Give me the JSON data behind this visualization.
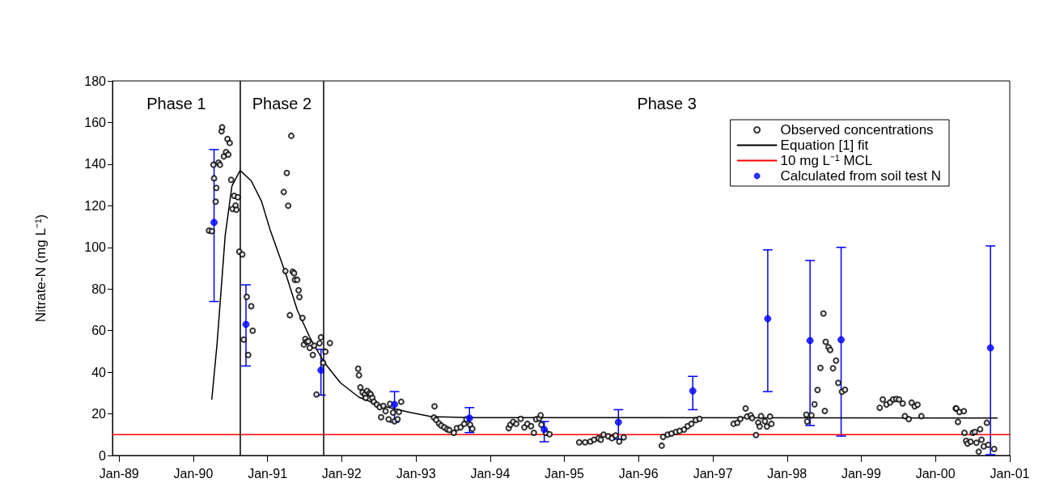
{
  "chart_data": {
    "type": "scatter",
    "ylabel": "Nitrate-N (mg L⁻¹)",
    "xlim": [
      "1988-11-29",
      "2001-01-01"
    ],
    "xticks": [
      {
        "value": "1989-01-01",
        "label": "Jan-89"
      },
      {
        "value": "1990-01-01",
        "label": "Jan-90"
      },
      {
        "value": "1991-01-01",
        "label": "Jan-91"
      },
      {
        "value": "1992-01-01",
        "label": "Jan-92"
      },
      {
        "value": "1993-01-01",
        "label": "Jan-93"
      },
      {
        "value": "1994-01-01",
        "label": "Jan-94"
      },
      {
        "value": "1995-01-01",
        "label": "Jan-95"
      },
      {
        "value": "1996-01-01",
        "label": "Jan-96"
      },
      {
        "value": "1997-01-01",
        "label": "Jan-97"
      },
      {
        "value": "1998-01-01",
        "label": "Jan-98"
      },
      {
        "value": "1999-01-01",
        "label": "Jan-99"
      },
      {
        "value": "2000-01-01",
        "label": "Jan-00"
      },
      {
        "value": "2001-01-01",
        "label": "Jan-01"
      }
    ],
    "ylim": [
      0,
      180
    ],
    "yticks": [
      0,
      20,
      40,
      60,
      80,
      100,
      120,
      140,
      160,
      180
    ],
    "grid": false,
    "legend": "top right",
    "series": [
      {
        "name": "Observed concentrations",
        "marker": "circle",
        "color": "#000000",
        "x": [
          "1990-03-19",
          "1990-04-02",
          "1990-04-10",
          "1990-04-13",
          "1990-04-21",
          "1990-04-24",
          "1990-05-05",
          "1990-05-12",
          "1990-05-20",
          "1990-05-23",
          "1990-05-31",
          "1990-06-11",
          "1990-06-18",
          "1990-06-22",
          "1990-06-29",
          "1990-07-06",
          "1990-07-13",
          "1990-07-21",
          "1990-07-28",
          "1990-08-01",
          "1990-08-08",
          "1990-08-15",
          "1990-08-30",
          "1990-09-06",
          "1990-09-21",
          "1990-09-28",
          "1990-10-13",
          "1990-10-20",
          "1991-03-22",
          "1991-03-30",
          "1991-04-06",
          "1991-04-13",
          "1991-04-21",
          "1991-04-28",
          "1991-05-05",
          "1991-05-12",
          "1991-05-16",
          "1991-05-27",
          "1991-06-03",
          "1991-06-07",
          "1991-06-22",
          "1991-06-29",
          "1991-07-06",
          "1991-07-13",
          "1991-07-21",
          "1991-07-28",
          "1991-08-12",
          "1991-08-19",
          "1991-08-30",
          "1991-09-14",
          "1991-09-21",
          "1991-10-02",
          "1991-10-13",
          "1991-11-04",
          "1992-03-22",
          "1992-03-26",
          "1992-04-02",
          "1992-04-13",
          "1992-04-24",
          "1992-04-28",
          "1992-05-05",
          "1992-05-16",
          "1992-05-23",
          "1992-05-31",
          "1992-06-07",
          "1992-06-22",
          "1992-07-06",
          "1992-07-13",
          "1992-07-24",
          "1992-08-04",
          "1992-08-19",
          "1992-08-26",
          "1992-09-10",
          "1992-09-17",
          "1992-10-02",
          "1992-10-09",
          "1992-10-20",
          "1993-03-30",
          "1993-04-02",
          "1993-04-10",
          "1993-04-24",
          "1993-05-05",
          "1993-05-20",
          "1993-06-03",
          "1993-06-14",
          "1993-07-06",
          "1993-07-21",
          "1993-08-08",
          "1993-08-26",
          "1993-09-06",
          "1993-09-24",
          "1993-10-05",
          "1994-04-02",
          "1994-04-10",
          "1994-04-24",
          "1994-05-09",
          "1994-05-31",
          "1994-06-18",
          "1994-07-03",
          "1994-07-21",
          "1994-08-04",
          "1994-08-15",
          "1994-08-30",
          "1994-09-06",
          "1994-09-10",
          "1994-10-02",
          "1994-10-20",
          "1995-03-15",
          "1995-04-13",
          "1995-05-09",
          "1995-05-27",
          "1995-06-18",
          "1995-06-29",
          "1995-07-13",
          "1995-08-04",
          "1995-08-23",
          "1995-09-10",
          "1995-09-28",
          "1995-10-20",
          "1996-04-24",
          "1996-05-01",
          "1996-05-23",
          "1996-06-11",
          "1996-07-03",
          "1996-07-21",
          "1996-08-12",
          "1996-08-30",
          "1996-09-17",
          "1996-10-09",
          "1996-10-27",
          "1997-04-13",
          "1997-05-01",
          "1997-05-16",
          "1997-06-11",
          "1997-06-18",
          "1997-07-06",
          "1997-07-13",
          "1997-08-01",
          "1997-08-12",
          "1997-08-19",
          "1997-08-26",
          "1997-09-14",
          "1997-09-24",
          "1997-10-09",
          "1997-10-16",
          "1998-04-06",
          "1998-04-10",
          "1998-05-01",
          "1998-05-16",
          "1998-05-31",
          "1998-06-14",
          "1998-06-29",
          "1998-07-06",
          "1998-07-10",
          "1998-07-24",
          "1998-08-01",
          "1998-08-15",
          "1998-08-30",
          "1998-09-10",
          "1998-09-28",
          "1998-10-13",
          "1999-04-02",
          "1999-04-17",
          "1999-05-05",
          "1999-05-23",
          "1999-06-07",
          "1999-06-22",
          "1999-07-06",
          "1999-07-24",
          "1999-08-04",
          "1999-08-23",
          "1999-09-06",
          "1999-09-21",
          "1999-10-05",
          "1999-10-24",
          "2000-04-10",
          "2000-04-13",
          "2000-04-21",
          "2000-04-28",
          "2000-05-20",
          "2000-05-23",
          "2000-05-31",
          "2000-06-07",
          "2000-06-22",
          "2000-07-03",
          "2000-07-13",
          "2000-07-21",
          "2000-08-01",
          "2000-08-08",
          "2000-08-15",
          "2000-08-26",
          "2000-09-10",
          "2000-09-17",
          "2000-10-16"
        ],
        "values": [
          108.1,
          107.8,
          139.7,
          133.2,
          122.0,
          128.6,
          140.7,
          139.7,
          155.8,
          157.7,
          143.7,
          145.8,
          152.1,
          144.6,
          150.2,
          132.5,
          118.5,
          124.8,
          120.1,
          118.1,
          124.1,
          98.0,
          96.6,
          55.7,
          76.2,
          48.3,
          71.7,
          60.0,
          126.6,
          88.6,
          135.8,
          120.0,
          67.4,
          153.6,
          88.3,
          87.6,
          84.4,
          84.4,
          79.4,
          76.1,
          66.1,
          53.3,
          56.0,
          54.6,
          54.8,
          51.7,
          48.3,
          52.8,
          29.3,
          53.9,
          56.8,
          44.5,
          49.9,
          54.0,
          41.7,
          38.6,
          32.7,
          30.3,
          29.4,
          27.7,
          31.0,
          29.9,
          29.4,
          27.7,
          25.8,
          24.5,
          23.2,
          18.4,
          23.8,
          21.3,
          17.4,
          24.8,
          20.6,
          16.4,
          17.4,
          20.9,
          25.8,
          18.3,
          23.6,
          17.1,
          15.4,
          14.4,
          13.5,
          12.6,
          12.2,
          10.9,
          13.1,
          13.5,
          15.2,
          17.4,
          14.8,
          12.8,
          13.1,
          14.8,
          16.1,
          15.2,
          17.6,
          13.5,
          15.2,
          14.1,
          10.9,
          17.4,
          17.8,
          19.3,
          14.8,
          10.9,
          10.2,
          6.3,
          6.3,
          6.7,
          7.6,
          8.3,
          7.6,
          10.0,
          9.2,
          8.3,
          9.6,
          6.7,
          8.7,
          4.7,
          8.9,
          10.0,
          10.5,
          11.3,
          11.8,
          12.4,
          14.1,
          15.2,
          17.0,
          17.6,
          15.2,
          15.7,
          17.6,
          22.6,
          18.7,
          19.3,
          18.0,
          9.8,
          15.8,
          13.9,
          18.9,
          16.4,
          13.9,
          18.7,
          15.2,
          19.6,
          16.3,
          19.3,
          24.6,
          31.5,
          42.1,
          68.2,
          21.4,
          54.6,
          52.0,
          50.7,
          41.9,
          45.6,
          34.9,
          30.6,
          31.6,
          22.9,
          26.9,
          24.5,
          25.5,
          26.9,
          27.1,
          26.9,
          25.0,
          18.9,
          17.5,
          25.4,
          23.6,
          24.4,
          18.9,
          22.6,
          22.6,
          16.1,
          20.9,
          21.3,
          10.9,
          7.0,
          5.7,
          6.6,
          10.9,
          11.3,
          6.1,
          1.8,
          12.6,
          7.6,
          4.4,
          15.7,
          5.1,
          3.1
        ]
      },
      {
        "name": "Equation [1] fit",
        "type": "line",
        "marker": "none",
        "color": "#000000",
        "x": [
          "1990-04-02",
          "1990-04-28",
          "1990-06-07",
          "1990-07-10",
          "1990-08-19",
          "1990-10-13",
          "1990-12-03",
          "1991-01-12",
          "1991-04-02",
          "1991-05-27",
          "1991-08-01",
          "1991-10-05",
          "1991-12-25",
          "1992-03-26",
          "1992-07-10",
          "1992-12-06",
          "1993-03-17",
          "1993-09-28",
          "2000-10-31"
        ],
        "values": [
          27,
          54,
          106,
          129.5,
          137,
          132,
          122,
          109,
          87,
          70,
          56,
          45,
          35,
          28,
          24,
          20.6,
          18.7,
          18.2,
          18
        ]
      },
      {
        "name": "10 mg L⁻¹ MCL",
        "type": "line",
        "marker": "none",
        "color": "#ff0000",
        "x": [
          "1988-11-29",
          "2001-01-01"
        ],
        "values": [
          10,
          10
        ]
      },
      {
        "name": "Calculated from soil test N",
        "marker": "circle",
        "color": "#0000ff",
        "x": [
          "1990-04-13",
          "1990-09-17",
          "1991-09-21",
          "1992-09-17",
          "1993-09-21",
          "1994-09-24",
          "1995-09-24",
          "1996-09-24",
          "1997-09-28",
          "1998-04-24",
          "1998-09-24",
          "2000-09-28"
        ],
        "values": [
          112,
          63,
          41,
          24.5,
          18,
          12.5,
          16,
          31,
          65.7,
          55.2,
          55.6,
          51.7
        ],
        "errors": [
          [
            74,
            147
          ],
          [
            43,
            82
          ],
          [
            29,
            51
          ],
          [
            16,
            30.7
          ],
          [
            11,
            23
          ],
          [
            6.6,
            16.3
          ],
          [
            7.8,
            22
          ],
          [
            22,
            38
          ],
          [
            30.7,
            98.8
          ],
          [
            14.4,
            93.7
          ],
          [
            9.3,
            100
          ],
          [
            0.4,
            100.7
          ]
        ]
      }
    ],
    "ref_lines": [
      {
        "axis": "x",
        "value": "1990-08-19",
        "color": "#000000"
      },
      {
        "axis": "x",
        "value": "1991-10-05",
        "color": "#000000"
      }
    ],
    "annotations": [
      "Phase 1",
      "Phase 2",
      "Phase 3"
    ]
  }
}
